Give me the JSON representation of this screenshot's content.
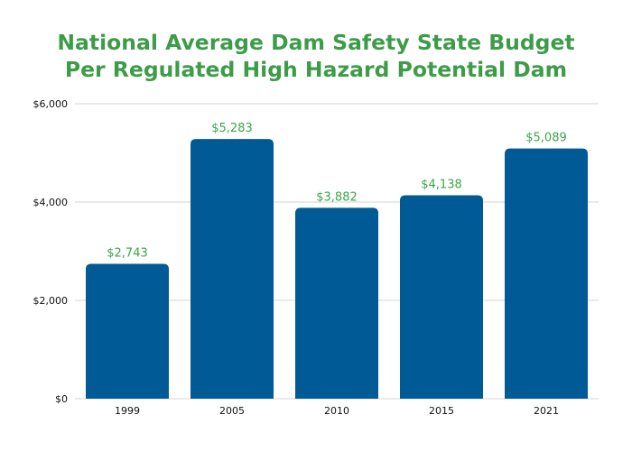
{
  "chart_data": {
    "type": "bar",
    "title": [
      "National Average Dam Safety State Budget",
      "Per Regulated High Hazard Potential Dam"
    ],
    "xlabel": "",
    "ylabel": "",
    "categories": [
      "1999",
      "2005",
      "2010",
      "2015",
      "2021"
    ],
    "values": [
      2743,
      5283,
      3882,
      4138,
      5089
    ],
    "data_labels": [
      "$2,743",
      "$5,283",
      "$3,882",
      "$4,138",
      "$5,089"
    ],
    "ylim": [
      0,
      6000
    ],
    "yticks": [
      0,
      2000,
      4000,
      6000
    ],
    "ytick_labels": [
      "$0",
      "$2,000",
      "$4,000",
      "$6,000"
    ],
    "grid": true,
    "colors": {
      "bar": "#005a96",
      "title": "#3d9c48",
      "data_label": "#3aa64a"
    }
  }
}
